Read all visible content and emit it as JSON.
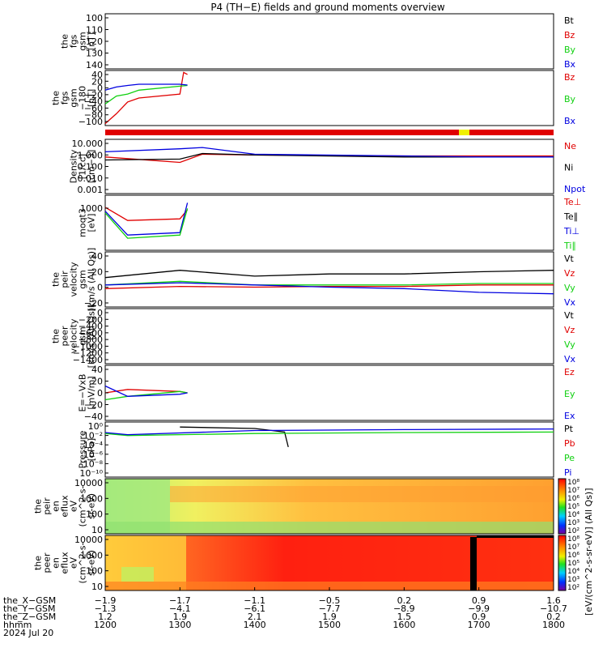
{
  "title": "P4 (TH−E) fields and ground moments overview",
  "colors": {
    "black": "#000000",
    "red": "#e00000",
    "green": "#10d010",
    "blue": "#0000e0"
  },
  "panels": [
    {
      "id": "fgs",
      "ylabel": [
        "the",
        "fgs",
        "gsm",
        "[nT]"
      ],
      "ticks": [
        "100",
        "110",
        "120",
        "130",
        "140"
      ],
      "legend": [
        "Bt",
        "Bz",
        "By",
        "Bx"
      ],
      "legend_colors": [
        "#000000",
        "#e00000",
        "#10d010",
        "#0000e0"
      ]
    },
    {
      "id": "fgs-hr",
      "ylabel": [
        "the",
        "fgs",
        "gsm",
        "−180",
        "[nT]"
      ],
      "ticks": [
        "40",
        "20",
        "0",
        "−20",
        "−40",
        "−60",
        "−80",
        "−100"
      ],
      "legend": [
        "Bz",
        "By",
        "Bx"
      ],
      "legend_colors": [
        "#e00000",
        "#10d010",
        "#0000e0"
      ]
    },
    {
      "id": "density",
      "ylabel": [
        "Density",
        "[1/cc]",
        "[cm−3]"
      ],
      "ticks": [
        "10.000",
        "1.000",
        "0.100",
        "0.010",
        "0.001"
      ],
      "legend": [
        "Ne",
        "Ni",
        "Npot"
      ],
      "legend_colors": [
        "#e00000",
        "#000000",
        "#0000e0"
      ]
    },
    {
      "id": "temperature",
      "ylabel": [
        "moqt3",
        "[eV]"
      ],
      "ticks": [
        "1000"
      ],
      "legend": [
        "Te⊥",
        "Te∥",
        "Ti⊥",
        "Ti∥"
      ],
      "legend_colors": [
        "#e00000",
        "#000000",
        "#0000e0",
        "#10d010"
      ]
    },
    {
      "id": "velocity",
      "ylabel": [
        "the",
        "peir",
        "velocity",
        "gsm",
        "[km/s (All Qs)]"
      ],
      "ticks": [
        "40",
        "20",
        "0",
        "−20"
      ],
      "legend": [
        "Vt",
        "Vz",
        "Vy",
        "Vx"
      ],
      "legend_colors": [
        "#000000",
        "#e00000",
        "#10d010",
        "#0000e0"
      ]
    },
    {
      "id": "peer-velocity",
      "ylabel": [
        "the",
        "peer",
        "velocity",
        "gsm",
        "[km/s (All Qs)]"
      ],
      "ticks": [
        "0",
        "−200",
        "−400",
        "−600",
        "−800",
        "−1000",
        "−1200",
        "−1400"
      ],
      "legend": [
        "Vt",
        "Vz",
        "Vy",
        "Vx"
      ],
      "legend_colors": [
        "#000000",
        "#e00000",
        "#10d010",
        "#0000e0"
      ]
    },
    {
      "id": "efield",
      "ylabel": [
        "E=−VxB",
        "[mV/m]"
      ],
      "ticks": [
        "40",
        "20",
        "0",
        "−20",
        "−40"
      ],
      "legend": [
        "Ez",
        "Ey",
        "Ex"
      ],
      "legend_colors": [
        "#e00000",
        "#10d010",
        "#0000e0"
      ]
    },
    {
      "id": "pressure",
      "ylabel": [
        "Pressure",
        "[nPa]"
      ],
      "ticks": [
        "10⁰",
        "10⁻²",
        "10⁻⁴",
        "10⁻⁶",
        "10⁻⁸",
        "10⁻¹⁰"
      ],
      "legend": [
        "Pt",
        "Pb",
        "Pe",
        "Pi"
      ],
      "legend_colors": [
        "#000000",
        "#e00000",
        "#10d010",
        "#0000e0"
      ]
    },
    {
      "id": "peir-spec",
      "ylabel": [
        "the",
        "peir",
        "en",
        "eflux",
        "eV",
        "(cm^2-s-",
        "sr-eV)"
      ],
      "ticks": [
        "10000",
        "1000",
        "100",
        "10"
      ],
      "legend": [],
      "legend_colors": []
    },
    {
      "id": "peer-spec",
      "ylabel": [
        "the",
        "peer",
        "en",
        "eflux",
        "eV",
        "(cm^2-s-",
        "sr-eV)"
      ],
      "ticks": [
        "10000",
        "1000",
        "100",
        "10"
      ],
      "legend": [],
      "legend_colors": []
    }
  ],
  "colorbar": {
    "ticks_top": [
      "10⁸",
      "10⁷",
      "10⁶",
      "10⁵",
      "10⁴",
      "10³",
      "10²"
    ],
    "ticks_bottom": [
      "10⁸",
      "10⁷",
      "10⁶",
      "10⁵",
      "10⁴",
      "10³",
      "10²"
    ],
    "label": "[eV/(cm^2-s-sr-eV)] (All Qs)]"
  },
  "xaxis": {
    "rows": [
      {
        "name": "the_X−GSM",
        "values": [
          "−1.9",
          "−1.7",
          "−1.1",
          "−0.5",
          "0.2",
          "0.9",
          "1.6"
        ]
      },
      {
        "name": "the_Y−GSM",
        "values": [
          "−1.3",
          "−4.1",
          "−6.1",
          "−7.7",
          "−8.9",
          "−9.9",
          "−10.7"
        ]
      },
      {
        "name": "the_Z−GSM",
        "values": [
          "1.2",
          "1.9",
          "2.1",
          "1.9",
          "1.5",
          "0.9",
          "0.2"
        ]
      },
      {
        "name": "hhmm",
        "values": [
          "1200",
          "1300",
          "1400",
          "1500",
          "1600",
          "1700",
          "1800"
        ]
      }
    ],
    "date": "2024 Jul 20"
  },
  "chart_data": {
    "type": "line",
    "title": "P4 (TH−E) fields and ground moments overview",
    "x": [
      "1200",
      "1300",
      "1400",
      "1500",
      "1600",
      "1700",
      "1800"
    ],
    "xlabel": "hhmm",
    "date": "2024 Jul 20",
    "panels": [
      {
        "name": "the fgs gsm [nT]",
        "ylim": [
          100,
          140
        ],
        "series": []
      },
      {
        "name": "the fgs gsm -180 [nT]",
        "ylim": [
          -100,
          40
        ],
        "series": [
          {
            "name": "Bz",
            "x": [
              1200,
              1215,
              1230,
              1245,
              1300,
              1305,
              1310
            ],
            "values": [
              -95,
              -70,
              -40,
              -30,
              -20,
              35,
              30
            ]
          },
          {
            "name": "By",
            "x": [
              1200,
              1215,
              1230,
              1245,
              1300,
              1310
            ],
            "values": [
              -45,
              -25,
              -20,
              -10,
              0,
              2
            ]
          },
          {
            "name": "Bx",
            "x": [
              1200,
              1215,
              1230,
              1245,
              1300,
              1310
            ],
            "values": [
              -10,
              -2,
              2,
              5,
              5,
              3
            ]
          }
        ]
      },
      {
        "name": "Density [1/cc]",
        "yscale": "log",
        "ylim": [
          0.001,
          10
        ],
        "series": [
          {
            "name": "Ne",
            "x": [
              1200,
              1300,
              1330,
              1400,
              1600,
              1650,
              1700,
              1800
            ],
            "values": [
              0.5,
              0.2,
              0.8,
              0.7,
              0.6,
              0.6,
              0.6,
              0.6
            ]
          },
          {
            "name": "Ni",
            "x": [
              1200,
              1300,
              1330,
              1400,
              1600,
              1700,
              1800
            ],
            "values": [
              0.3,
              0.35,
              0.9,
              0.7,
              0.5,
              0.5,
              0.5
            ]
          },
          {
            "name": "Npot",
            "x": [
              1200,
              1300,
              1330,
              1400,
              1600,
              1700,
              1800
            ],
            "values": [
              1.2,
              2,
              2.5,
              0.8,
              0.6,
              0.5,
              0.5
            ]
          }
        ]
      },
      {
        "name": "moqt3 [eV]",
        "yscale": "log",
        "series": [
          {
            "name": "Te⊥",
            "x": [
              1200,
              1230,
              1300,
              1310
            ],
            "values": [
              1000,
              300,
              350,
              800
            ]
          },
          {
            "name": "Ti⊥",
            "x": [
              1200,
              1230,
              1300,
              1310
            ],
            "values": [
              700,
              80,
              100,
              1500
            ]
          },
          {
            "name": "Ti∥",
            "x": [
              1200,
              1230,
              1300,
              1310
            ],
            "values": [
              600,
              60,
              80,
              900
            ]
          }
        ]
      },
      {
        "name": "the peir velocity gsm [km/s (All Qs)]",
        "ylim": [
          -30,
          45
        ],
        "series": [
          {
            "name": "Vt",
            "x": [
              1200,
              1300,
              1400,
              1500,
              1600,
              1700,
              1800
            ],
            "values": [
              10,
              20,
              12,
              15,
              15,
              18,
              20
            ]
          },
          {
            "name": "Vz",
            "x": [
              1200,
              1300,
              1400,
              1500,
              1600,
              1700,
              1800
            ],
            "values": [
              -5,
              -2,
              -3,
              -2,
              -2,
              0,
              0
            ]
          },
          {
            "name": "Vy",
            "x": [
              1200,
              1300,
              1400,
              1500,
              1600,
              1700,
              1800
            ],
            "values": [
              0,
              5,
              0,
              0,
              0,
              2,
              2
            ]
          },
          {
            "name": "Vx",
            "x": [
              1200,
              1300,
              1400,
              1500,
              1600,
              1700,
              1800
            ],
            "values": [
              0,
              3,
              0,
              -3,
              -5,
              -10,
              -12
            ]
          }
        ]
      },
      {
        "name": "the peer velocity gsm [km/s (All Qs)]",
        "ylim": [
          -1400,
          0
        ],
        "series": []
      },
      {
        "name": "E=-VxB [mV/m]",
        "ylim": [
          -40,
          40
        ],
        "series": [
          {
            "name": "Ez",
            "x": [
              1200,
              1230,
              1300,
              1310
            ],
            "values": [
              0,
              5,
              2,
              0
            ]
          },
          {
            "name": "Ey",
            "x": [
              1200,
              1230,
              1300,
              1310
            ],
            "values": [
              -10,
              -5,
              2,
              0
            ]
          },
          {
            "name": "Ex",
            "x": [
              1200,
              1230,
              1300,
              1310
            ],
            "values": [
              10,
              -5,
              -2,
              0
            ]
          }
        ]
      },
      {
        "name": "Pressure [nPa]",
        "yscale": "log",
        "series": [
          {
            "name": "Pt",
            "x": [
              1300,
              1400,
              1440,
              1445
            ],
            "values": [
              1,
              0.5,
              0.1,
              0.0001
            ]
          },
          {
            "name": "Pe",
            "x": [
              1200,
              1230,
              1400,
              1600,
              1800
            ],
            "values": [
              0.05,
              0.02,
              0.05,
              0.08,
              0.1
            ]
          },
          {
            "name": "Pi",
            "x": [
              1200,
              1230,
              1400,
              1600,
              1800
            ],
            "values": [
              0.08,
              0.03,
              0.2,
              0.3,
              0.4
            ]
          }
        ]
      }
    ]
  }
}
